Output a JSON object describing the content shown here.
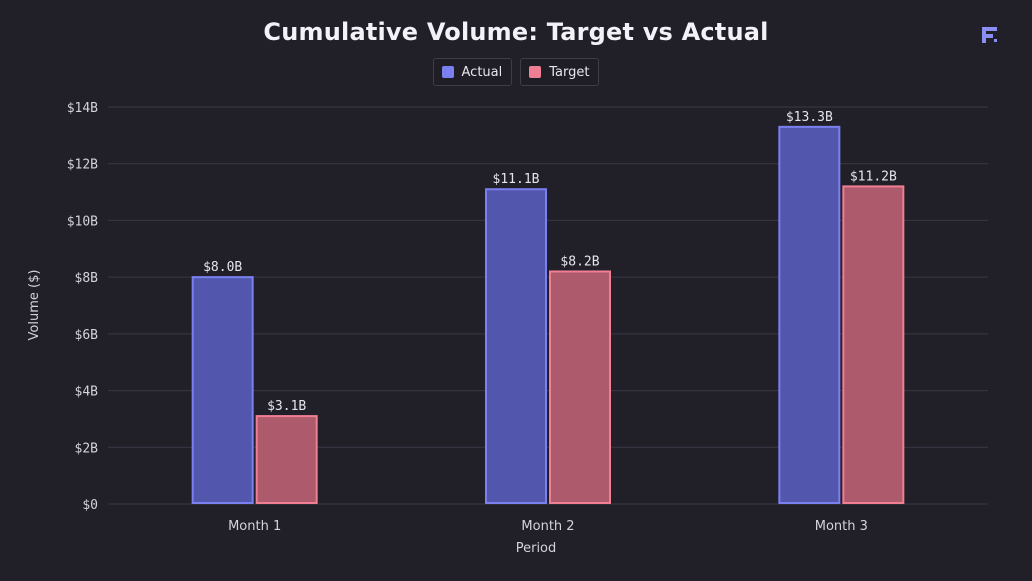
{
  "title": "Cumulative Volume: Target vs Actual",
  "logo": {
    "icon": "brand-logo-icon",
    "color": "#8b8ff5"
  },
  "legend": [
    {
      "label": "Actual",
      "color": "#7b80f0"
    },
    {
      "label": "Target",
      "color": "#f07f94"
    }
  ],
  "chart_data": {
    "type": "bar",
    "title": "Cumulative Volume: Target vs Actual",
    "xlabel": "Period",
    "ylabel": "Volume ($)",
    "categories": [
      "Month 1",
      "Month 2",
      "Month 3"
    ],
    "ylim": [
      0,
      14
    ],
    "yticks": [
      0,
      2,
      4,
      6,
      8,
      10,
      12,
      14
    ],
    "ytick_labels": [
      "$0",
      "$2B",
      "$4B",
      "$6B",
      "$8B",
      "$10B",
      "$12B",
      "$14B"
    ],
    "grid": true,
    "legend_position": "top-center",
    "series": [
      {
        "name": "Actual",
        "values": [
          8.0,
          11.1,
          13.3
        ],
        "labels": [
          "$8.0B",
          "$11.1B",
          "$13.3B"
        ],
        "fill": "#5257ad",
        "stroke": "#7b80f0"
      },
      {
        "name": "Target",
        "values": [
          3.1,
          8.2,
          11.2
        ],
        "labels": [
          "$3.1B",
          "$8.2B",
          "$11.2B"
        ],
        "fill": "#ad5a6c",
        "stroke": "#f07f94"
      }
    ]
  }
}
